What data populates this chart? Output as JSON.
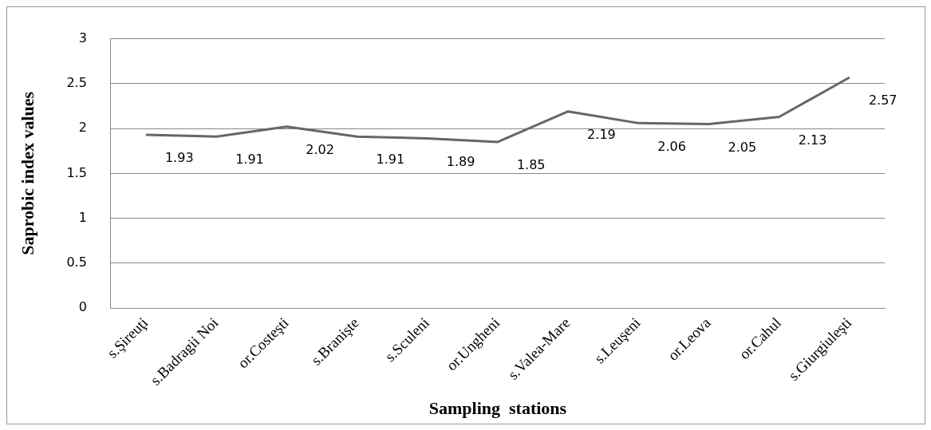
{
  "chart_data": {
    "type": "line",
    "xlabel": "Sampling  stations",
    "ylabel": "Saprobic index values",
    "categories": [
      "s.Şireuţi",
      "s.Badragii Noi",
      "or.Costeşti",
      "s.Branişte",
      "s.Sculeni",
      "or.Ungheni",
      "s.Valea-Mare",
      "s.Leuşeni",
      "or.Leova",
      "or.Cahul",
      "s.Giurgiuleşti"
    ],
    "series": [
      {
        "color": "#666666",
        "values": [
          1.93,
          1.91,
          2.02,
          1.91,
          1.89,
          1.85,
          2.19,
          2.06,
          2.05,
          2.13,
          2.57
        ]
      }
    ],
    "ylim": [
      0,
      3
    ],
    "yticks": [
      0,
      0.5,
      1,
      1.5,
      2,
      2.5,
      3
    ],
    "grid": "y",
    "legend": false,
    "marker": "none",
    "line_style": "solid",
    "data_labels": true
  }
}
